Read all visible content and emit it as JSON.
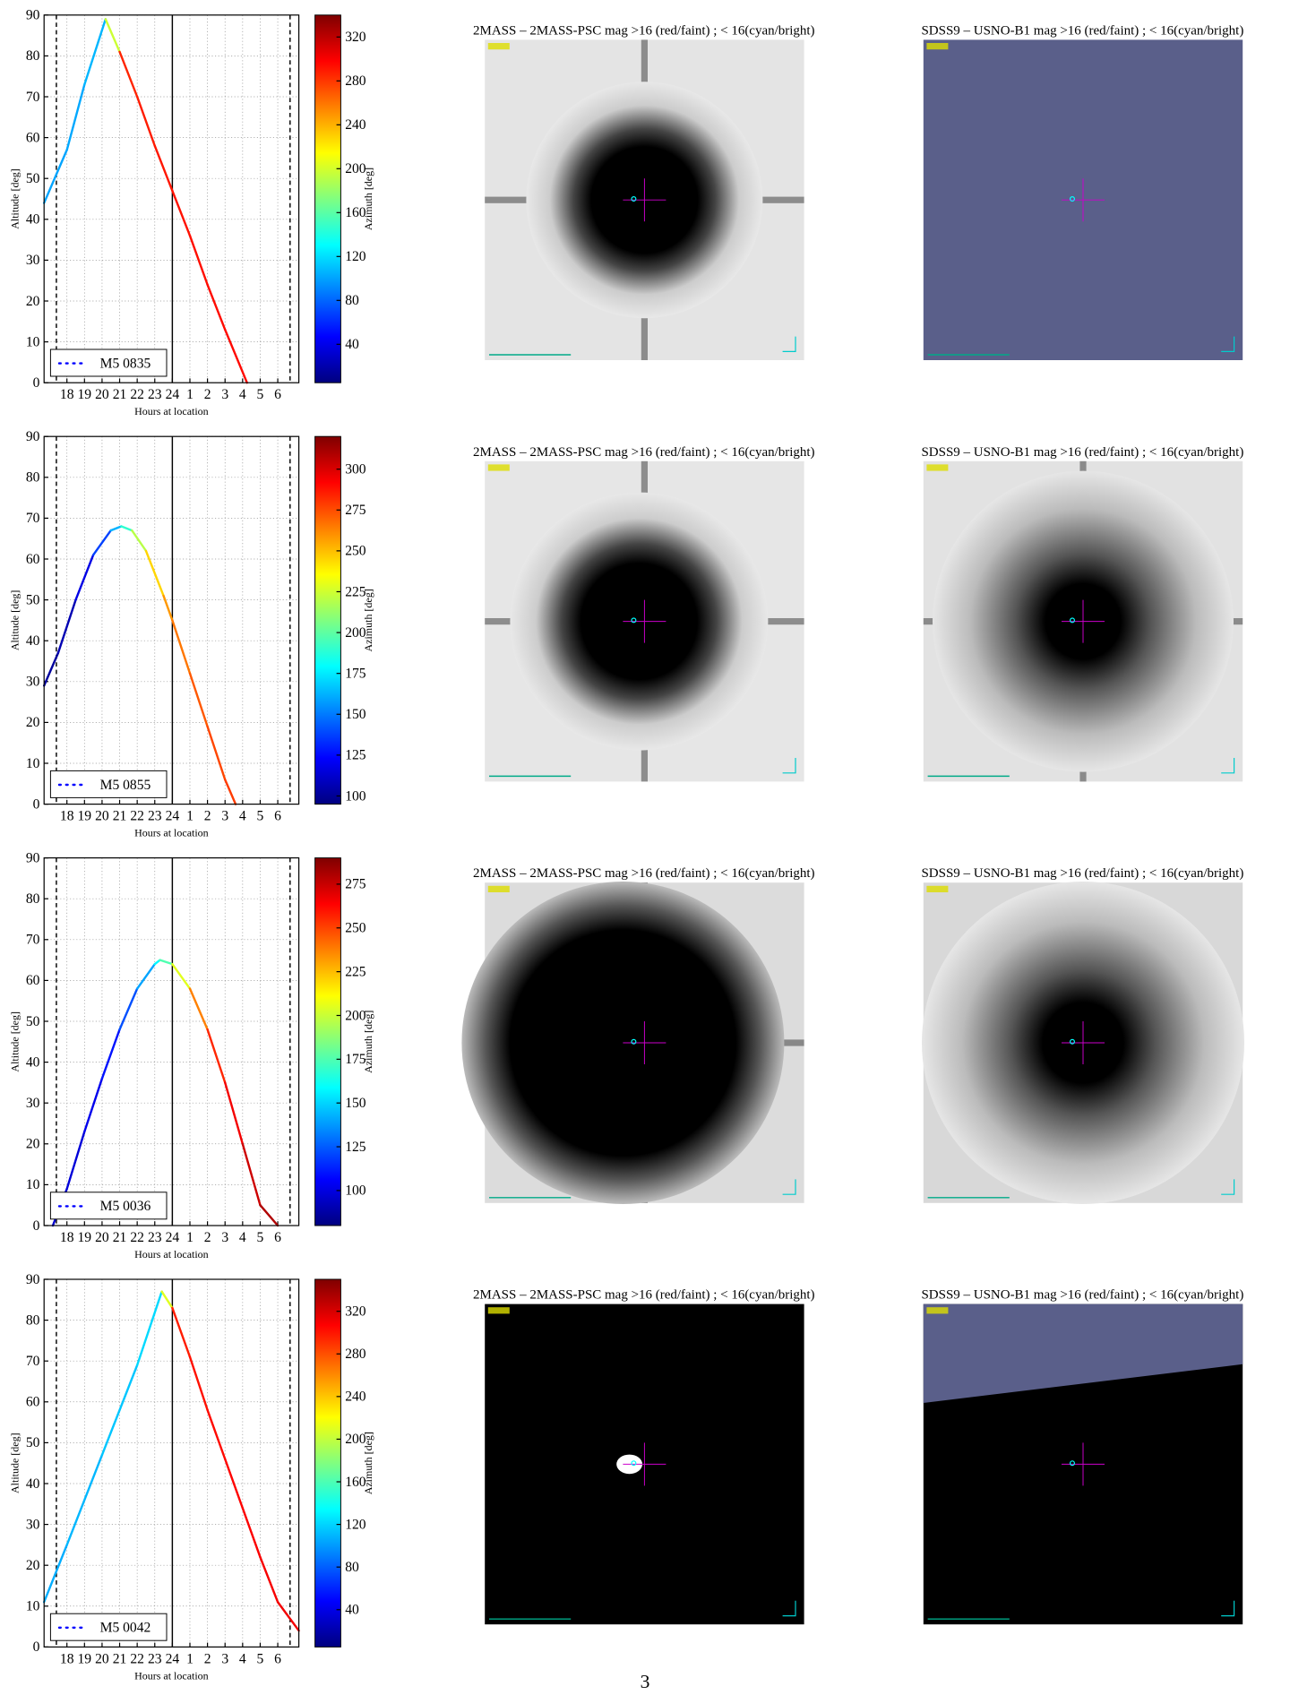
{
  "chart_data": [
    {
      "type": "line",
      "xlabel": "Hours at location",
      "ylabel": "Altitude [deg]",
      "grid": true,
      "legend": "lower left",
      "xlim": [
        16.7,
        31.2
      ],
      "ylim": [
        0,
        90
      ],
      "xticks": [
        18,
        19,
        20,
        21,
        22,
        23,
        24,
        {
          "value": 25,
          "label": "1"
        },
        {
          "value": 26,
          "label": "2"
        },
        {
          "value": 27,
          "label": "3"
        },
        {
          "value": 28,
          "label": "4"
        },
        {
          "value": 29,
          "label": "5"
        },
        {
          "value": 30,
          "label": "6"
        }
      ],
      "yticks": [
        0,
        10,
        20,
        30,
        40,
        50,
        60,
        70,
        80,
        90
      ],
      "vlines": {
        "dashed": [
          17.4,
          30.7
        ],
        "solid": [
          24
        ]
      },
      "colormap": [
        "#00007f",
        "#0000ff",
        "#0080ff",
        "#00ffff",
        "#80ff80",
        "#ffff00",
        "#ff8000",
        "#ff0000",
        "#7f0000"
      ],
      "colorbar": {
        "label": "Azimuth [deg]",
        "clim": [
          5,
          340
        ],
        "ticks": [
          40,
          80,
          120,
          160,
          200,
          240,
          280,
          320
        ]
      },
      "x": [
        16.7,
        18,
        19,
        20.2,
        21,
        22,
        23,
        24,
        25,
        26,
        27,
        28.25
      ],
      "series": [
        {
          "name": "M5 0835",
          "color": "#0000ff",
          "values": [
            44,
            57,
            73,
            89,
            81,
            70,
            58,
            47,
            36,
            24,
            13,
            0
          ],
          "azimuth": [
            100,
            101,
            103,
            110,
            285,
            288,
            290,
            292,
            293,
            294,
            295,
            296
          ]
        }
      ]
    },
    {
      "type": "line",
      "xlabel": "Hours at location",
      "ylabel": "Altitude [deg]",
      "grid": true,
      "legend": "lower left",
      "xlim": [
        16.7,
        31.2
      ],
      "ylim": [
        0,
        90
      ],
      "xticks": [
        18,
        19,
        20,
        21,
        22,
        23,
        24,
        {
          "value": 25,
          "label": "1"
        },
        {
          "value": 26,
          "label": "2"
        },
        {
          "value": 27,
          "label": "3"
        },
        {
          "value": 28,
          "label": "4"
        },
        {
          "value": 29,
          "label": "5"
        },
        {
          "value": 30,
          "label": "6"
        }
      ],
      "yticks": [
        0,
        10,
        20,
        30,
        40,
        50,
        60,
        70,
        80,
        90
      ],
      "vlines": {
        "dashed": [
          17.4,
          30.7
        ],
        "solid": [
          24
        ]
      },
      "colormap": [
        "#00007f",
        "#0000ff",
        "#0080ff",
        "#00ffff",
        "#80ff80",
        "#ffff00",
        "#ff8000",
        "#ff0000",
        "#7f0000"
      ],
      "colorbar": {
        "label": "Azimuth [deg]",
        "clim": [
          95,
          320
        ],
        "ticks": [
          100,
          125,
          150,
          175,
          200,
          225,
          250,
          275,
          300
        ]
      },
      "x": [
        16.7,
        17.5,
        18.5,
        19.5,
        20.5,
        21.1,
        21.7,
        22.5,
        23.5,
        24,
        25,
        26,
        27,
        27.6
      ],
      "series": [
        {
          "name": "M5 0855",
          "color": "#0000ff",
          "values": [
            29,
            37,
            50,
            61,
            67,
            68,
            67,
            62,
            51,
            45,
            32,
            19,
            6,
            0
          ],
          "azimuth": [
            100,
            103,
            110,
            125,
            150,
            175,
            205,
            235,
            255,
            262,
            270,
            275,
            278,
            280
          ]
        }
      ]
    },
    {
      "type": "line",
      "xlabel": "Hours at location",
      "ylabel": "Altitude [deg]",
      "grid": true,
      "legend": "lower left",
      "xlim": [
        16.7,
        31.2
      ],
      "ylim": [
        0,
        90
      ],
      "xticks": [
        18,
        19,
        20,
        21,
        22,
        23,
        24,
        {
          "value": 25,
          "label": "1"
        },
        {
          "value": 26,
          "label": "2"
        },
        {
          "value": 27,
          "label": "3"
        },
        {
          "value": 28,
          "label": "4"
        },
        {
          "value": 29,
          "label": "5"
        },
        {
          "value": 30,
          "label": "6"
        }
      ],
      "yticks": [
        0,
        10,
        20,
        30,
        40,
        50,
        60,
        70,
        80,
        90
      ],
      "vlines": {
        "dashed": [
          17.4,
          30.7
        ],
        "solid": [
          24
        ]
      },
      "colormap": [
        "#00007f",
        "#0000ff",
        "#0080ff",
        "#00ffff",
        "#80ff80",
        "#ffff00",
        "#ff8000",
        "#ff0000",
        "#7f0000"
      ],
      "colorbar": {
        "label": "Azimuth [deg]",
        "clim": [
          80,
          290
        ],
        "ticks": [
          100,
          125,
          150,
          175,
          200,
          225,
          250,
          275
        ]
      },
      "x": [
        17.2,
        18,
        19,
        20,
        21,
        22,
        23,
        23.3,
        24,
        25,
        26,
        27,
        28,
        29,
        30
      ],
      "series": [
        {
          "name": "M5 0036",
          "color": "#0000ff",
          "values": [
            0,
            9,
            23,
            36,
            48,
            58,
            64,
            65,
            64,
            58,
            48,
            35,
            20,
            5,
            0
          ],
          "azimuth": [
            95,
            97,
            100,
            105,
            115,
            130,
            150,
            165,
            185,
            225,
            250,
            262,
            270,
            278,
            282
          ]
        }
      ]
    },
    {
      "type": "line",
      "xlabel": "Hours at location",
      "ylabel": "Altitude [deg]",
      "grid": true,
      "legend": "lower left",
      "xlim": [
        16.7,
        31.2
      ],
      "ylim": [
        0,
        90
      ],
      "xticks": [
        18,
        19,
        20,
        21,
        22,
        23,
        24,
        {
          "value": 25,
          "label": "1"
        },
        {
          "value": 26,
          "label": "2"
        },
        {
          "value": 27,
          "label": "3"
        },
        {
          "value": 28,
          "label": "4"
        },
        {
          "value": 29,
          "label": "5"
        },
        {
          "value": 30,
          "label": "6"
        }
      ],
      "yticks": [
        0,
        10,
        20,
        30,
        40,
        50,
        60,
        70,
        80,
        90
      ],
      "vlines": {
        "dashed": [
          17.4,
          30.7
        ],
        "solid": [
          24
        ]
      },
      "colormap": [
        "#00007f",
        "#0000ff",
        "#0080ff",
        "#00ffff",
        "#80ff80",
        "#ffff00",
        "#ff8000",
        "#ff0000",
        "#7f0000"
      ],
      "colorbar": {
        "label": "Azimuth [deg]",
        "clim": [
          5,
          350
        ],
        "ticks": [
          40,
          80,
          120,
          160,
          200,
          240,
          280,
          320
        ]
      },
      "x": [
        16.7,
        18,
        20,
        22,
        23.4,
        24,
        25,
        26,
        27,
        28,
        29,
        30,
        31.2
      ],
      "series": [
        {
          "name": "M5 0042",
          "color": "#0000ff",
          "values": [
            11,
            25,
            47,
            69,
            87,
            83,
            71,
            58,
            46,
            34,
            22,
            11,
            4
          ],
          "azimuth": [
            105,
            108,
            112,
            118,
            125,
            295,
            300,
            303,
            305,
            307,
            309,
            310,
            312
          ]
        }
      ]
    }
  ],
  "panels": [
    [
      "2MASS – 2MASS-PSC mag >16 (red/faint) ; < 16(cyan/bright)",
      "SDSS9 – USNO-B1 mag >16 (red/faint) ; < 16(cyan/bright)"
    ],
    [
      "2MASS – 2MASS-PSC mag >16 (red/faint) ; < 16(cyan/bright)",
      "SDSS9 – USNO-B1 mag >16 (red/faint) ; < 16(cyan/bright)"
    ],
    [
      "2MASS – 2MASS-PSC mag >16 (red/faint) ; < 16(cyan/bright)",
      "SDSS9 – USNO-B1 mag >16 (red/faint) ; < 16(cyan/bright)"
    ],
    [
      "2MASS – 2MASS-PSC mag >16 (red/faint) ; < 16(cyan/bright)",
      "SDSS9 – USNO-B1 mag >16 (red/faint) ; < 16(cyan/bright)"
    ]
  ],
  "page_number": "3"
}
